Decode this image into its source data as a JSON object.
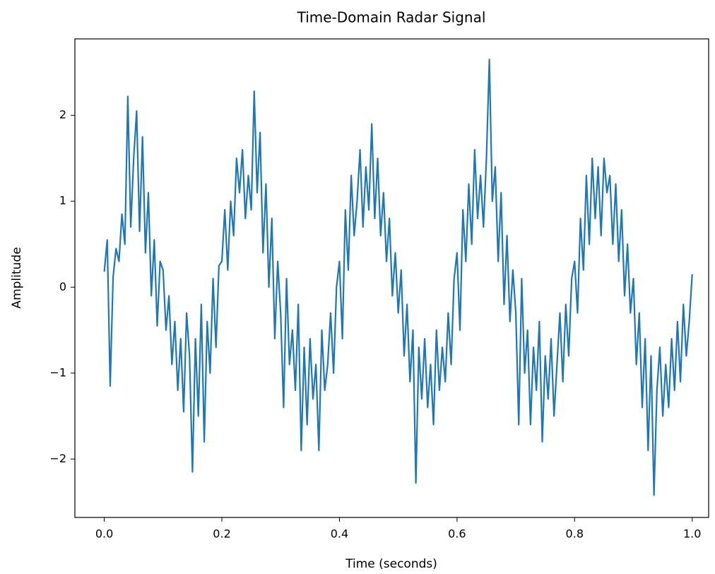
{
  "chart_data": {
    "type": "line",
    "title": "Time-Domain Radar Signal",
    "x_label": "Time (seconds)",
    "y_label": "Amplitude",
    "x": [
      0,
      0.005,
      0.01,
      0.015,
      0.02,
      0.025,
      0.03,
      0.035,
      0.04,
      0.045,
      0.05,
      0.055,
      0.06,
      0.065,
      0.07,
      0.075,
      0.08,
      0.085,
      0.09,
      0.095,
      0.1,
      0.105,
      0.11,
      0.115,
      0.12,
      0.125,
      0.13,
      0.135,
      0.14,
      0.145,
      0.15,
      0.155,
      0.16,
      0.165,
      0.17,
      0.175,
      0.18,
      0.185,
      0.19,
      0.195,
      0.2,
      0.205,
      0.21,
      0.215,
      0.22,
      0.225,
      0.23,
      0.235,
      0.24,
      0.245,
      0.25,
      0.255,
      0.26,
      0.265,
      0.27,
      0.275,
      0.28,
      0.285,
      0.29,
      0.295,
      0.3,
      0.305,
      0.31,
      0.315,
      0.32,
      0.325,
      0.33,
      0.335,
      0.34,
      0.345,
      0.35,
      0.355,
      0.36,
      0.365,
      0.37,
      0.375,
      0.38,
      0.385,
      0.39,
      0.395,
      0.4,
      0.405,
      0.41,
      0.415,
      0.42,
      0.425,
      0.43,
      0.435,
      0.44,
      0.445,
      0.45,
      0.455,
      0.46,
      0.465,
      0.47,
      0.475,
      0.48,
      0.485,
      0.49,
      0.495,
      0.5,
      0.505,
      0.51,
      0.515,
      0.52,
      0.525,
      0.53,
      0.535,
      0.54,
      0.545,
      0.55,
      0.555,
      0.56,
      0.565,
      0.57,
      0.575,
      0.58,
      0.585,
      0.59,
      0.595,
      0.6,
      0.605,
      0.61,
      0.615,
      0.62,
      0.625,
      0.63,
      0.635,
      0.64,
      0.645,
      0.65,
      0.655,
      0.66,
      0.665,
      0.67,
      0.675,
      0.68,
      0.685,
      0.69,
      0.695,
      0.7,
      0.705,
      0.71,
      0.715,
      0.72,
      0.725,
      0.73,
      0.735,
      0.74,
      0.745,
      0.75,
      0.755,
      0.76,
      0.765,
      0.77,
      0.775,
      0.78,
      0.785,
      0.79,
      0.795,
      0.8,
      0.805,
      0.81,
      0.815,
      0.82,
      0.825,
      0.83,
      0.835,
      0.84,
      0.845,
      0.85,
      0.855,
      0.86,
      0.865,
      0.87,
      0.875,
      0.88,
      0.885,
      0.89,
      0.895,
      0.9,
      0.905,
      0.91,
      0.915,
      0.92,
      0.925,
      0.93,
      0.935,
      0.94,
      0.945,
      0.95,
      0.955,
      0.96,
      0.965,
      0.97,
      0.975,
      0.98,
      0.985,
      0.99,
      0.995,
      1.0
    ],
    "series": [
      {
        "color": "#1f77b4",
        "values": [
          0.18,
          0.55,
          -1.15,
          0.12,
          0.45,
          0.3,
          0.85,
          0.5,
          2.22,
          0.7,
          1.5,
          2.05,
          0.65,
          1.75,
          0.4,
          1.1,
          -0.1,
          0.55,
          -0.45,
          0.3,
          0.2,
          -0.5,
          -0.1,
          -0.9,
          -0.4,
          -1.2,
          -0.6,
          -1.45,
          -0.3,
          -0.8,
          -2.15,
          -0.6,
          -1.5,
          -0.2,
          -1.8,
          -0.4,
          -1.0,
          0.1,
          -0.7,
          0.25,
          0.3,
          0.9,
          0.2,
          1.0,
          0.6,
          1.5,
          1.1,
          1.6,
          0.8,
          1.3,
          0.9,
          2.28,
          1.1,
          1.8,
          0.4,
          1.2,
          0.0,
          0.8,
          -0.6,
          0.3,
          -0.3,
          -1.4,
          0.1,
          -0.9,
          -0.5,
          -1.2,
          -0.2,
          -1.9,
          -0.7,
          -1.6,
          -0.6,
          -1.3,
          -0.9,
          -1.9,
          -0.5,
          -1.2,
          -0.9,
          -0.3,
          -1.0,
          0.0,
          0.3,
          -0.6,
          0.9,
          0.2,
          1.3,
          0.6,
          1.0,
          1.6,
          0.7,
          1.4,
          0.9,
          1.9,
          0.8,
          1.5,
          0.6,
          1.1,
          0.3,
          0.8,
          -0.1,
          0.4,
          -0.3,
          0.2,
          -0.8,
          -0.2,
          -1.1,
          -0.5,
          -2.28,
          -0.7,
          -1.3,
          -0.6,
          -1.4,
          -0.9,
          -1.6,
          -0.5,
          -1.2,
          -0.7,
          -1.1,
          -0.3,
          -0.9,
          0.1,
          0.4,
          -0.5,
          0.9,
          0.3,
          1.2,
          0.5,
          1.6,
          0.8,
          1.3,
          0.7,
          1.5,
          2.65,
          1.0,
          1.4,
          0.3,
          1.1,
          -0.2,
          0.6,
          -0.4,
          0.2,
          -0.3,
          -1.6,
          0.1,
          -1.0,
          -0.5,
          -1.6,
          -0.7,
          -1.2,
          -0.4,
          -1.8,
          -0.8,
          -1.3,
          -0.6,
          -1.5,
          -0.9,
          -0.3,
          -1.1,
          -0.2,
          -0.8,
          0.1,
          0.3,
          -0.3,
          0.8,
          0.2,
          1.3,
          0.5,
          1.5,
          0.8,
          1.4,
          0.6,
          1.5,
          1.1,
          1.3,
          0.5,
          1.2,
          0.3,
          0.9,
          -0.1,
          0.5,
          -0.3,
          0.1,
          -0.9,
          -0.3,
          -1.4,
          -0.6,
          -1.9,
          -0.8,
          -2.42,
          -1.2,
          -0.7,
          -1.5,
          -0.9,
          -1.4,
          -0.6,
          -1.2,
          -0.4,
          -1.1,
          -0.2,
          -0.8,
          -0.4,
          0.15
        ]
      }
    ],
    "xlim": [
      -0.05,
      1.028
    ],
    "ylim": [
      -2.68,
      2.89
    ],
    "xticks": [
      {
        "value": 0,
        "label": "0.0"
      },
      0.2,
      0.4,
      0.6,
      0.8,
      {
        "value": 1,
        "label": "1.0"
      }
    ],
    "yticks": [
      {
        "value": -2,
        "label": "−2"
      },
      {
        "value": -1,
        "label": "−1"
      },
      0,
      1,
      2
    ]
  }
}
